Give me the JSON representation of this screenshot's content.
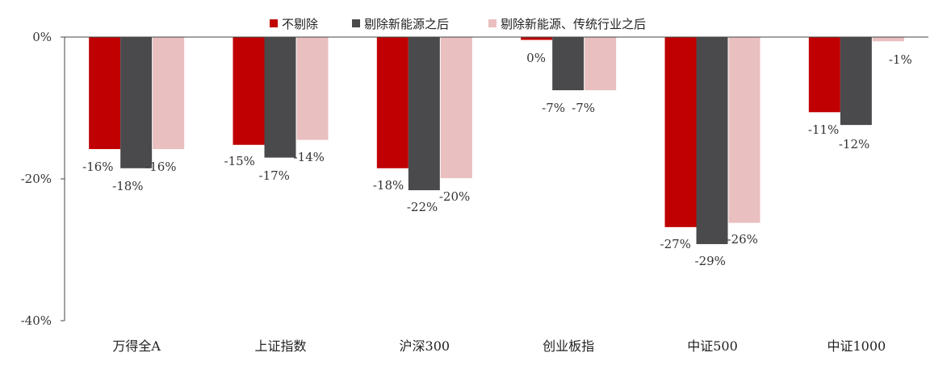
{
  "chart_data": {
    "type": "bar",
    "title": "",
    "xlabel": "",
    "ylabel": "",
    "ylim": [
      -40,
      0
    ],
    "yticks": [
      0,
      -20,
      -40
    ],
    "ytick_labels": [
      "0%",
      "-20%",
      "-40%"
    ],
    "grid": false,
    "legend_position": "top",
    "categories": [
      "万得全A",
      "上证指数",
      "沪深300",
      "创业板指",
      "中证500",
      "中证1000"
    ],
    "series": [
      {
        "name": "不剔除",
        "color": "#C00000",
        "values": [
          -15.8,
          -15.2,
          -18.5,
          -0.4,
          -26.8,
          -10.6
        ],
        "labels": [
          "-16%",
          "-15%",
          "-18%",
          "0%",
          "-27%",
          "-11%"
        ]
      },
      {
        "name": "剔除新能源之后",
        "color": "#4A4A4C",
        "values": [
          -18.5,
          -17.0,
          -21.6,
          -7.5,
          -29.2,
          -12.4
        ],
        "labels": [
          "-18%",
          "-17%",
          "-22%",
          "-7%",
          "-29%",
          "-12%"
        ]
      },
      {
        "name": "剔除新能源、传统行业之后",
        "color": "#E9BFC0",
        "values": [
          -15.8,
          -14.5,
          -19.9,
          -7.5,
          -26.2,
          -0.6
        ],
        "labels": [
          "-16%",
          "-14%",
          "-20%",
          "-7%",
          "-26%",
          "-1%"
        ]
      }
    ]
  }
}
